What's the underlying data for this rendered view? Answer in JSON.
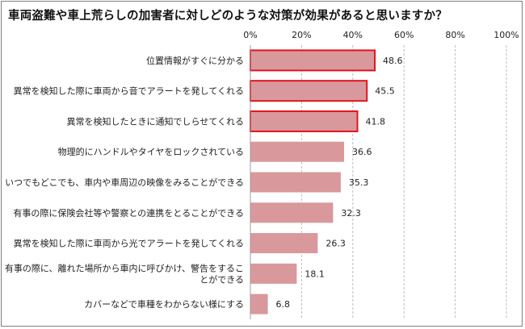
{
  "title": "車両盗難や車上荒らしの加害者に対しどのような対策が効果があると思いますか？",
  "chart_data": {
    "type": "bar",
    "orientation": "horizontal",
    "title": "車両盗難や車上荒らしの加害者に対しどのような対策が効果があると思いますか？",
    "xlim": [
      0,
      100
    ],
    "ticks": [
      "0%",
      "20%",
      "40%",
      "60%",
      "80%",
      "100%"
    ],
    "tick_values": [
      0,
      20,
      40,
      60,
      80,
      100
    ],
    "grid": true,
    "categories": [
      [
        "位置情報がすぐに分かる"
      ],
      [
        "異常を検知した際に車両から音でアラートを発してくれる"
      ],
      [
        "異常を検知したときに通知でしらせてくれる"
      ],
      [
        "物理的にハンドルやタイヤをロックされている"
      ],
      [
        "いつでもどこでも、車内や車周辺の映像をみることができる"
      ],
      [
        "有事の際に保険会社等や警察との連携をとることができる"
      ],
      [
        "異常を検知した際に車両から光でアラートを発してくれる"
      ],
      [
        "有事の際に、離れた場所から車内に呼びかけ、警告をするこ",
        "とができる"
      ],
      [
        "カバーなどで車種をわからない様にする"
      ]
    ],
    "values": [
      48.6,
      45.5,
      41.8,
      36.6,
      35.3,
      32.3,
      26.3,
      18.1,
      6.8
    ],
    "value_labels": [
      "48.6",
      "45.5",
      "41.8",
      "36.6",
      "35.3",
      "32.3",
      "26.3",
      "18.1",
      "6.8"
    ],
    "highlighted": [
      true,
      true,
      true,
      false,
      false,
      false,
      false,
      false,
      false
    ],
    "bar_color": "#d9989b",
    "highlight_border_color": "#e0141e"
  }
}
